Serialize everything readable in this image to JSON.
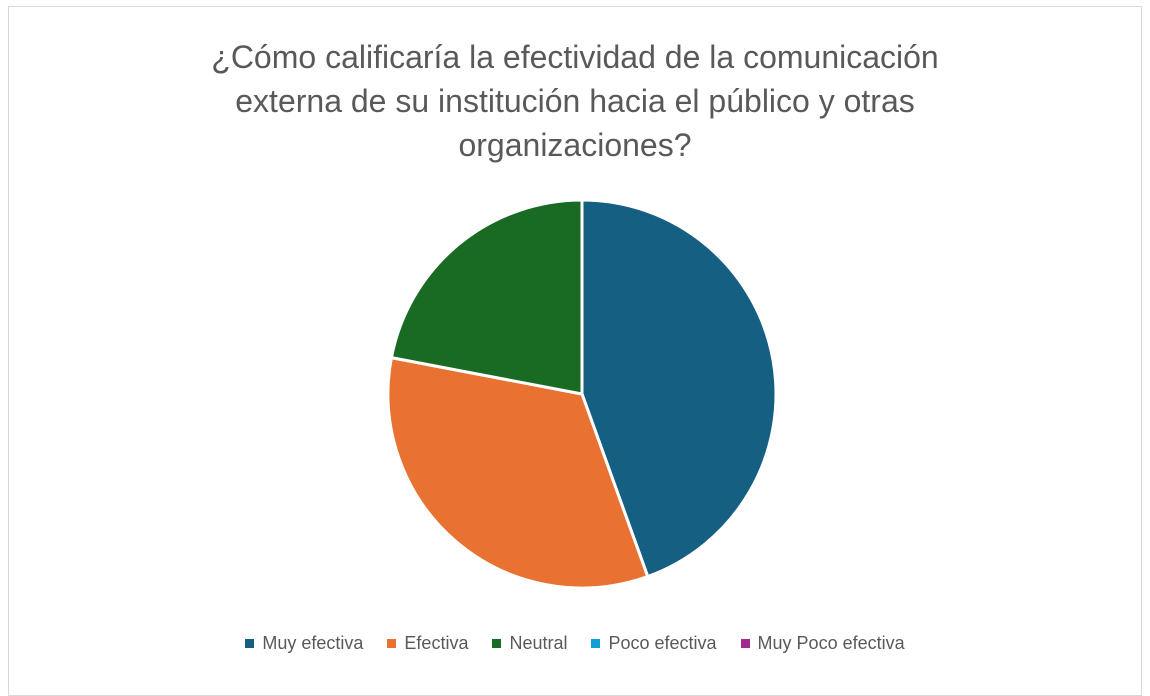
{
  "chart_data": {
    "type": "pie",
    "title_lines": [
      "¿Cómo calificaría la efectividad de la comunicación",
      "externa de su institución hacia el público y otras",
      "organizaciones?"
    ],
    "categories": [
      "Muy efectiva",
      "Efectiva",
      "Neutral",
      "Poco efectiva",
      "Muy Poco efectiva"
    ],
    "values": [
      44.5,
      33.5,
      22,
      0,
      0
    ],
    "colors": [
      "#156082",
      "#E97132",
      "#196B24",
      "#0F9ED5",
      "#A02B93"
    ],
    "legend_position": "bottom"
  }
}
